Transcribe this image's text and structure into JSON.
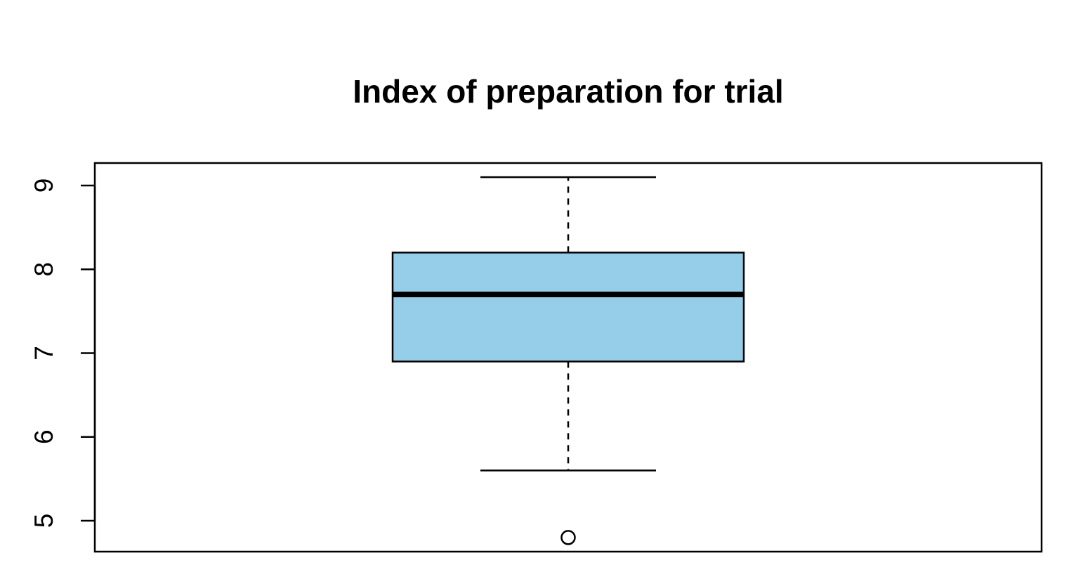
{
  "chart_data": {
    "type": "boxplot",
    "title": "Index of preparation for trial",
    "xlabel": "",
    "ylabel": "",
    "ylim": [
      4.8,
      9.3
    ],
    "yticks": [
      5,
      6,
      7,
      8,
      9
    ],
    "box_color": "#96CDE8",
    "grid": false,
    "box": {
      "lower_whisker": 5.6,
      "q1": 6.9,
      "median": 7.7,
      "q3": 8.2,
      "upper_whisker": 9.1,
      "outliers": [
        4.8
      ]
    }
  }
}
